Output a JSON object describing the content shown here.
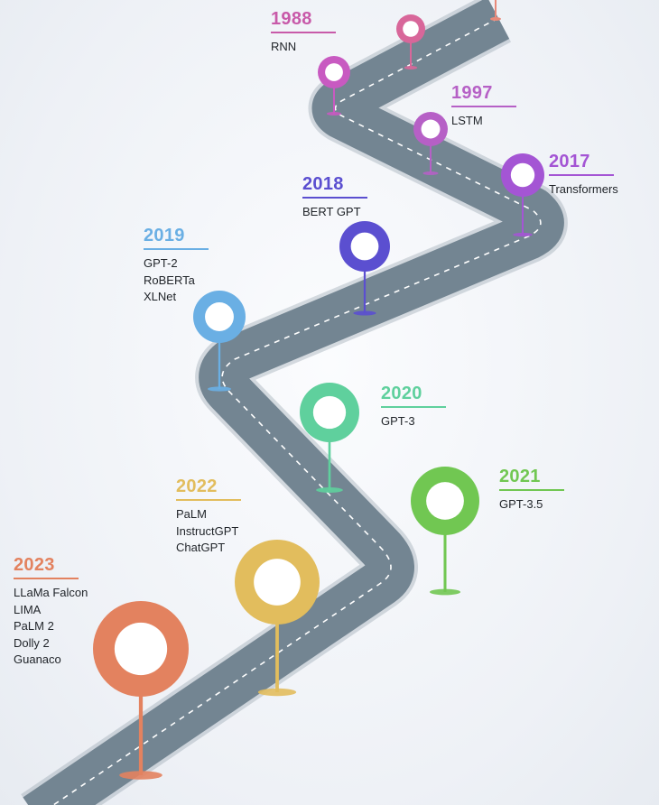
{
  "milestones": [
    {
      "id": "1988",
      "year": "1988",
      "items": [
        "RNN"
      ],
      "color": "#c85aa9"
    },
    {
      "id": "1997",
      "year": "1997",
      "items": [
        "LSTM"
      ],
      "color": "#b660c6"
    },
    {
      "id": "2017",
      "year": "2017",
      "items": [
        "Transformers"
      ],
      "color": "#a455d4"
    },
    {
      "id": "2018",
      "year": "2018",
      "items": [
        "BERT GPT"
      ],
      "color": "#5b4fd0"
    },
    {
      "id": "2019",
      "year": "2019",
      "items": [
        "GPT-2",
        "RoBERTa",
        "XLNet"
      ],
      "color": "#6aafe4"
    },
    {
      "id": "2020",
      "year": "2020",
      "items": [
        "GPT-3"
      ],
      "color": "#5fd09d"
    },
    {
      "id": "2021",
      "year": "2021",
      "items": [
        "GPT-3.5"
      ],
      "color": "#71c752"
    },
    {
      "id": "2022",
      "year": "2022",
      "items": [
        "PaLM",
        "InstructGPT",
        "ChatGPT"
      ],
      "color": "#e2bd5d"
    },
    {
      "id": "2023",
      "year": "2023",
      "items": [
        "LLaMa Falcon",
        "LIMA",
        "PaLM 2",
        "Dolly 2",
        "Guanaco"
      ],
      "color": "#e3825f"
    }
  ],
  "road": {
    "color": "#738592",
    "edge_color": "#8d9ba6",
    "dash_color": "#ffffff"
  }
}
